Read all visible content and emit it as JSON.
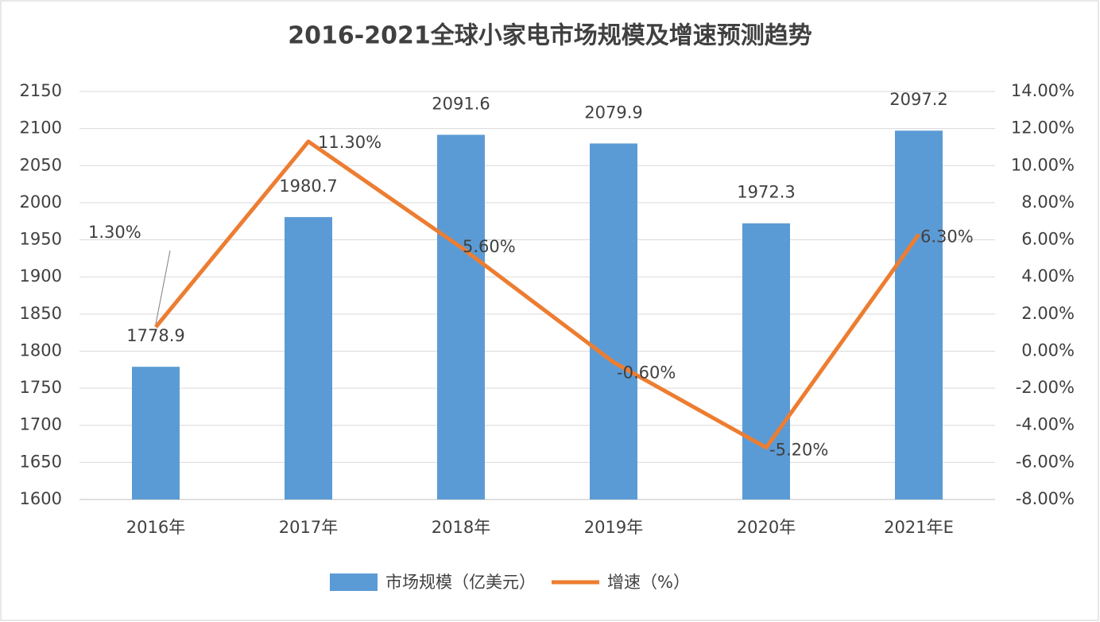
{
  "chart_data": {
    "type": "bar",
    "title": "2016-2021全球小家电市场规模及增速预测趋势",
    "categories": [
      "2016年",
      "2017年",
      "2018年",
      "2019年",
      "2020年",
      "2021年E"
    ],
    "series": [
      {
        "name": "市场规模（亿美元）",
        "type": "bar",
        "color": "#5b9bd5",
        "values": [
          1778.9,
          1980.7,
          2091.6,
          2079.9,
          1972.3,
          2097.2
        ]
      },
      {
        "name": "增速（%）",
        "type": "line",
        "axis": "y2",
        "color": "#ed7d31",
        "values": [
          1.3,
          11.3,
          5.6,
          -0.6,
          -5.2,
          6.3
        ],
        "value_labels": [
          "1.30%",
          "11.30%",
          "5.60%",
          "-0.60%",
          "-5.20%",
          "6.30%"
        ]
      }
    ],
    "ylim": [
      1600,
      2150
    ],
    "yticks": [
      1600,
      1650,
      1700,
      1750,
      1800,
      1850,
      1900,
      1950,
      2000,
      2050,
      2100,
      2150
    ],
    "y2lim": [
      -8,
      14
    ],
    "y2ticks": [
      {
        "value": -8,
        "label": "-8.00%"
      },
      {
        "value": -6,
        "label": "-6.00%"
      },
      {
        "value": -4,
        "label": "-4.00%"
      },
      {
        "value": -2,
        "label": "-2.00%"
      },
      {
        "value": 0,
        "label": "0.00%"
      },
      {
        "value": 2,
        "label": "2.00%"
      },
      {
        "value": 4,
        "label": "4.00%"
      },
      {
        "value": 6,
        "label": "6.00%"
      },
      {
        "value": 8,
        "label": "8.00%"
      },
      {
        "value": 10,
        "label": "10.00%"
      },
      {
        "value": 12,
        "label": "12.00%"
      },
      {
        "value": 14,
        "label": "14.00%"
      }
    ],
    "grid": true,
    "legend": "bottom"
  }
}
